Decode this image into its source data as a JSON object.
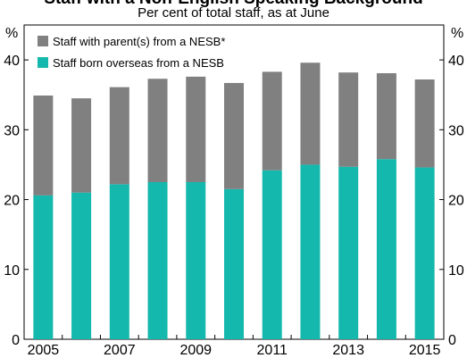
{
  "chart_data": {
    "type": "bar",
    "stacked": true,
    "title": "Staff with a Non-English Speaking Background",
    "subtitle": "Per cent of total staff, as at June",
    "unit_left": "%",
    "unit_right": "%",
    "categories": [
      "2005",
      "2006",
      "2007",
      "2008",
      "2009",
      "2010",
      "2011",
      "2012",
      "2013",
      "2014",
      "2015"
    ],
    "x_tick_labels": [
      "2005",
      "2007",
      "2009",
      "2011",
      "2013",
      "2015"
    ],
    "ylim": [
      0,
      45
    ],
    "y_ticks": [
      0,
      10,
      20,
      30,
      40
    ],
    "series": [
      {
        "name": "Staff born overseas from a NESB",
        "color": "#14b8ad",
        "values": [
          20.6,
          21.0,
          22.2,
          22.5,
          22.5,
          21.5,
          24.2,
          25.0,
          24.7,
          25.8,
          24.6
        ]
      },
      {
        "name": "Staff with parent(s) from a NESB*",
        "color": "#808080",
        "values": [
          14.3,
          13.5,
          13.9,
          14.8,
          15.1,
          15.2,
          14.1,
          14.6,
          13.5,
          12.3,
          12.6
        ]
      }
    ],
    "legend_position": "top-left",
    "grid": false
  }
}
